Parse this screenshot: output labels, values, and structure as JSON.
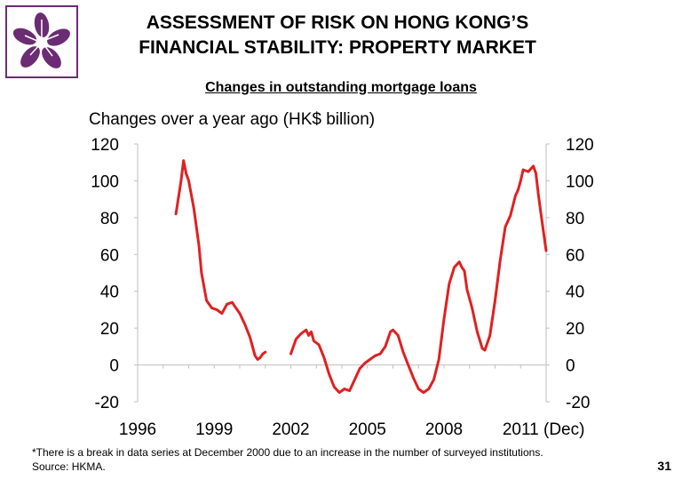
{
  "slide": {
    "title_line1": "ASSESSMENT OF RISK ON HONG KONG’S",
    "title_line2": "FINANCIAL STABILITY: PROPERTY MARKET",
    "footnote": "*There is a break in data series at December 2000 due to an increase in the number of surveyed institutions.",
    "source": "Source: HKMA.",
    "page_number": "31"
  },
  "colors": {
    "line": "#e02020",
    "logo": "#6b2c73"
  },
  "chart_data": {
    "type": "line",
    "title": "Changes in outstanding mortgage loans",
    "ylabel": "Changes over a year ago (HK$ billion)",
    "ylim": [
      -20,
      120
    ],
    "yticks": [
      -20,
      0,
      20,
      40,
      60,
      80,
      100,
      120
    ],
    "xlim": [
      1996,
      2012
    ],
    "xticks": [
      1996,
      1999,
      2002,
      2005,
      2008,
      2011
    ],
    "x_end_label": "(Dec)",
    "series": [
      {
        "segments": [
          [
            [
              1997.5,
              82
            ],
            [
              1997.7,
              100
            ],
            [
              1997.8,
              111
            ],
            [
              1997.9,
              104
            ],
            [
              1998.0,
              100
            ],
            [
              1998.2,
              85
            ],
            [
              1998.4,
              65
            ],
            [
              1998.5,
              50
            ],
            [
              1998.7,
              35
            ],
            [
              1998.9,
              31
            ],
            [
              1999.1,
              30
            ],
            [
              1999.3,
              28
            ],
            [
              1999.5,
              33
            ],
            [
              1999.7,
              34
            ],
            [
              1999.8,
              32
            ],
            [
              2000.0,
              28
            ],
            [
              2000.2,
              22
            ],
            [
              2000.4,
              15
            ],
            [
              2000.6,
              5
            ],
            [
              2000.7,
              3
            ],
            [
              2000.8,
              4
            ],
            [
              2000.9,
              6
            ],
            [
              2001.0,
              7
            ]
          ],
          [
            [
              2002.0,
              6
            ],
            [
              2002.2,
              14
            ],
            [
              2002.4,
              17
            ],
            [
              2002.6,
              19
            ],
            [
              2002.7,
              16
            ],
            [
              2002.8,
              18
            ],
            [
              2002.9,
              13
            ],
            [
              2003.1,
              11
            ],
            [
              2003.3,
              4
            ],
            [
              2003.5,
              -5
            ],
            [
              2003.7,
              -12
            ],
            [
              2003.9,
              -15
            ],
            [
              2004.1,
              -13
            ],
            [
              2004.3,
              -14
            ],
            [
              2004.5,
              -8
            ],
            [
              2004.7,
              -2
            ],
            [
              2004.9,
              1
            ],
            [
              2005.1,
              3
            ],
            [
              2005.3,
              5
            ],
            [
              2005.5,
              6
            ],
            [
              2005.7,
              10
            ],
            [
              2005.9,
              18
            ],
            [
              2006.0,
              19
            ],
            [
              2006.2,
              16
            ],
            [
              2006.4,
              7
            ],
            [
              2006.6,
              0
            ],
            [
              2006.8,
              -7
            ],
            [
              2007.0,
              -13
            ],
            [
              2007.2,
              -15
            ],
            [
              2007.4,
              -13
            ],
            [
              2007.6,
              -8
            ],
            [
              2007.8,
              3
            ],
            [
              2008.0,
              25
            ],
            [
              2008.2,
              44
            ],
            [
              2008.4,
              53
            ],
            [
              2008.6,
              56
            ],
            [
              2008.7,
              53
            ],
            [
              2008.8,
              51
            ],
            [
              2008.9,
              41
            ],
            [
              2009.1,
              31
            ],
            [
              2009.3,
              18
            ],
            [
              2009.5,
              9
            ],
            [
              2009.6,
              8
            ],
            [
              2009.8,
              16
            ],
            [
              2010.0,
              35
            ],
            [
              2010.2,
              57
            ],
            [
              2010.4,
              75
            ],
            [
              2010.6,
              81
            ],
            [
              2010.8,
              92
            ],
            [
              2010.9,
              95
            ],
            [
              2011.0,
              100
            ],
            [
              2011.1,
              106
            ],
            [
              2011.3,
              105
            ],
            [
              2011.5,
              108
            ],
            [
              2011.6,
              104
            ],
            [
              2011.7,
              92
            ],
            [
              2011.8,
              82
            ],
            [
              2011.9,
              72
            ],
            [
              2012.0,
              62
            ]
          ]
        ]
      }
    ]
  }
}
